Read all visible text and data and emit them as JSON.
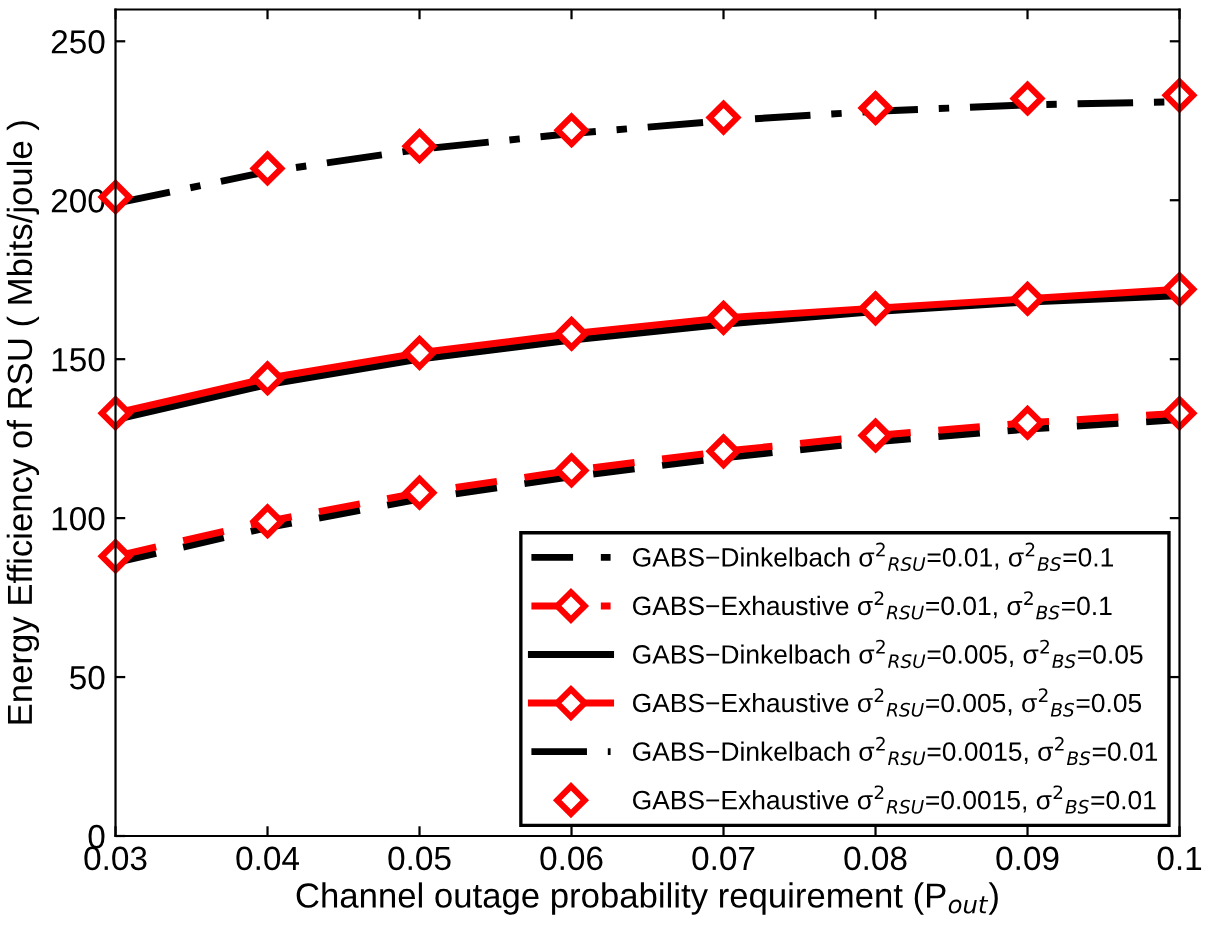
{
  "chart_data": {
    "type": "line",
    "xlabel": "Channel outage probability requirement (P$_{out}$)",
    "ylabel": "Energy Efficiency of RSU ( Mbits/joule )",
    "x": [
      0.03,
      0.04,
      0.05,
      0.06,
      0.07,
      0.08,
      0.09,
      0.1
    ],
    "series": [
      {
        "name": "GABS−Dinkelbach σ$^{2}$$_{RSU}$=0.01, σ$^{2}$$_{BS}$=0.1",
        "color": "#000000",
        "line_style": "dashed",
        "marker": "none",
        "values": [
          86,
          97,
          106,
          113,
          119,
          124,
          128,
          131
        ]
      },
      {
        "name": "GABS−Exhaustive σ$^{2}$$_{RSU}$=0.01, σ$^{2}$$_{BS}$=0.1",
        "color": "#ff0000",
        "line_style": "dashed",
        "marker": "diamond",
        "values": [
          88,
          99,
          108,
          115,
          121,
          126,
          130,
          133
        ]
      },
      {
        "name": "GABS−Dinkelbach σ$^{2}$$_{RSU}$=0.005, σ$^{2}$$_{BS}$=0.05",
        "color": "#000000",
        "line_style": "solid",
        "marker": "none",
        "values": [
          131,
          142,
          150,
          156,
          161,
          165,
          168,
          170
        ]
      },
      {
        "name": "GABS−Exhaustive σ$^{2}$$_{RSU}$=0.005, σ$^{2}$$_{BS}$=0.05",
        "color": "#ff0000",
        "line_style": "solid",
        "marker": "diamond",
        "values": [
          133,
          144,
          152,
          158,
          163,
          166,
          169,
          172
        ]
      },
      {
        "name": "GABS−Dinkelbach σ$^{2}$$_{RSU}$=0.0015, σ$^{2}$$_{BS}$=0.01",
        "color": "#000000",
        "line_style": "dashdot",
        "marker": "none",
        "values": [
          199,
          209,
          216,
          221,
          225,
          228,
          230,
          231
        ]
      },
      {
        "name": "GABS−Exhaustive σ$^{2}$$_{RSU}$=0.0015, σ$^{2}$$_{BS}$=0.01",
        "color": "#ff0000",
        "type": "scatter",
        "marker": "diamond",
        "values": [
          201,
          210,
          217,
          222,
          226,
          229,
          232,
          233
        ]
      }
    ],
    "xlim": [
      0.03,
      0.1
    ],
    "xticks": [
      {
        "value": 0.03,
        "label": "0.03"
      },
      {
        "value": 0.04,
        "label": "0.04"
      },
      {
        "value": 0.05,
        "label": "0.05"
      },
      {
        "value": 0.06,
        "label": "0.06"
      },
      {
        "value": 0.07,
        "label": "0.07"
      },
      {
        "value": 0.08,
        "label": "0.08"
      },
      {
        "value": 0.09,
        "label": "0.09"
      },
      {
        "value": 0.1,
        "label": "0.1"
      }
    ],
    "ylim": [
      0,
      260
    ],
    "yticks": [
      0,
      50,
      100,
      150,
      200,
      250
    ],
    "legend": "bottom right",
    "grid": false
  }
}
